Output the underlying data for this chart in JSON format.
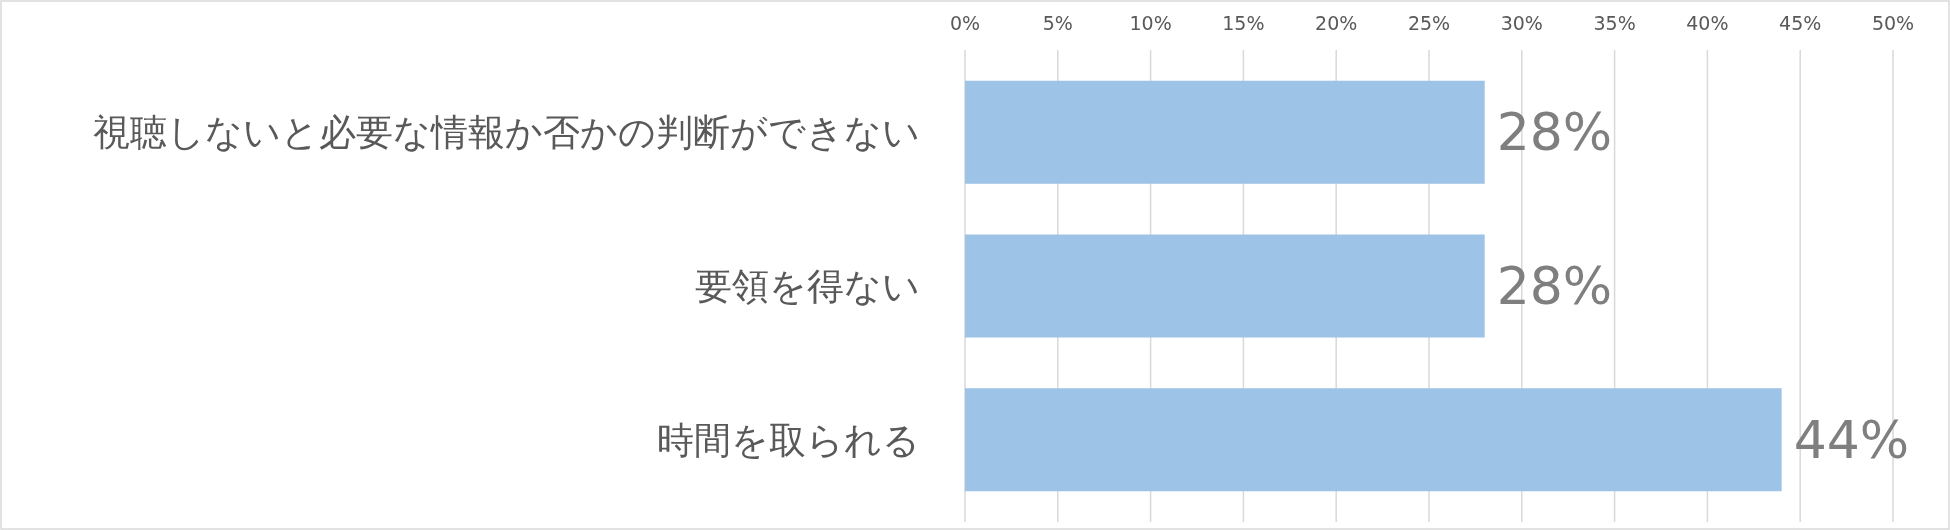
{
  "chart_data": {
    "type": "bar",
    "orientation": "horizontal",
    "categories": [
      "視聴しないと必要な情報か否かの判断ができない",
      "要領を得ない",
      "時間を取られる"
    ],
    "values": [
      28,
      28,
      44
    ],
    "color": "#9dc3e6",
    "value_labels": [
      "28%",
      "28%",
      "44%"
    ],
    "xlim": [
      0,
      50
    ],
    "xticks": [
      {
        "value": 0,
        "label": "0%"
      },
      {
        "value": 5,
        "label": "5%"
      },
      {
        "value": 10,
        "label": "10%"
      },
      {
        "value": 15,
        "label": "15%"
      },
      {
        "value": 20,
        "label": "20%"
      },
      {
        "value": 25,
        "label": "25%"
      },
      {
        "value": 30,
        "label": "30%"
      },
      {
        "value": 35,
        "label": "35%"
      },
      {
        "value": 40,
        "label": "40%"
      },
      {
        "value": 45,
        "label": "45%"
      },
      {
        "value": 50,
        "label": "50%"
      }
    ],
    "grid": "x"
  }
}
